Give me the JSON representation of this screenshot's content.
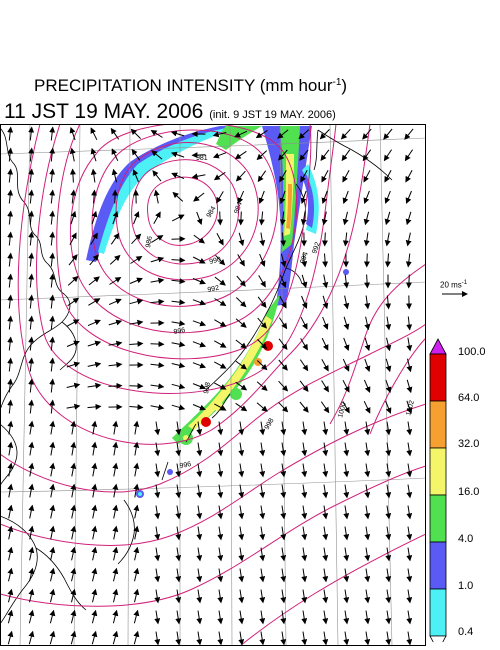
{
  "header": {
    "title_text": "PRECIPITATION INTENSITY (mm hour",
    "title_sup": "-1",
    "title_close": ")",
    "valid_time": "11 JST 19 MAY. 2006",
    "init_note": "(init. 9 JST 19 MAY. 2006)"
  },
  "wind_scale": {
    "value": "20 ms",
    "sup": "-1"
  },
  "legend": {
    "labels": [
      "100.0",
      "64.0",
      "32.0",
      "16.0",
      "4.0",
      "1.0",
      "0.4"
    ],
    "colors": [
      "#e00000",
      "#f5a030",
      "#f5f56a",
      "#50e050",
      "#5a5af5",
      "#4cf0f5"
    ],
    "over_color": "#d020f0",
    "under_color": "#ffffff"
  },
  "isobars": {
    "labels": [
      "981",
      "984",
      "984",
      "986",
      "990",
      "992",
      "992",
      "994",
      "996",
      "996",
      "998",
      "998",
      "1000",
      "1002"
    ]
  },
  "colors": {
    "isobar": "#d0207a",
    "coast": "#000000",
    "grid": "#909090",
    "arrow": "#000000"
  }
}
